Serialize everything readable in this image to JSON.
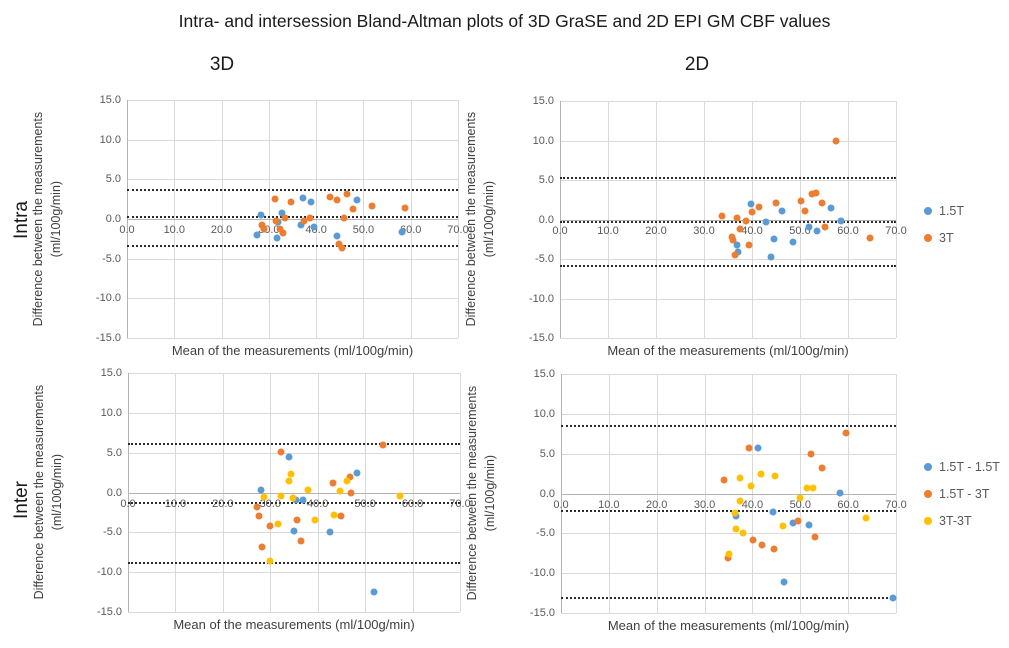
{
  "title": "Intra- and intersession Bland-Altman plots of 3D GraSE and 2D EPI GM CBF values",
  "column_headers": [
    "3D",
    "2D"
  ],
  "row_headers": [
    "Intra",
    "Inter"
  ],
  "colors": {
    "series_blue": "#5B9BD5",
    "series_orange": "#ED7D31",
    "series_yellow": "#FFC000",
    "gridline": "#D9D9D9",
    "axis_text": "#595959",
    "ref_line": "#2B2B2B"
  },
  "chart_data": [
    {
      "id": "intra-3d",
      "type": "scatter",
      "row": "Intra",
      "col": "3D",
      "xlabel": "Mean of the measurements (ml/100g/min)",
      "ylabel": [
        "Difference between the measurements",
        "(ml/100g/min)"
      ],
      "xlim": [
        0,
        70
      ],
      "ylim": [
        -15,
        15
      ],
      "xticks": [
        0,
        10,
        20,
        30,
        40,
        50,
        60,
        70
      ],
      "yticks": [
        15,
        10,
        5,
        0,
        -5,
        -10,
        -15
      ],
      "grid": true,
      "ref_lines": {
        "upper_loa": 3.7,
        "mean": 0.2,
        "lower_loa": -3.4
      },
      "legend": null,
      "series": [
        {
          "name": "1.5T",
          "color": "#5B9BD5",
          "points": [
            [
              28.3,
              0.5
            ],
            [
              27.5,
              -2.0
            ],
            [
              32.7,
              0.7
            ],
            [
              32.0,
              -0.4
            ],
            [
              31.8,
              -2.4
            ],
            [
              37.3,
              2.6
            ],
            [
              38.9,
              2.1
            ],
            [
              36.9,
              -0.8
            ],
            [
              39.6,
              -1.0
            ],
            [
              44.4,
              -2.2
            ],
            [
              48.6,
              2.4
            ],
            [
              58.2,
              -1.7
            ]
          ]
        },
        {
          "name": "3T",
          "color": "#ED7D31",
          "points": [
            [
              31.2,
              2.5
            ],
            [
              34.6,
              2.1
            ],
            [
              28.5,
              -0.8
            ],
            [
              28.9,
              -1.3
            ],
            [
              31.5,
              -0.2
            ],
            [
              32.4,
              -1.3
            ],
            [
              33.0,
              -1.8
            ],
            [
              33.4,
              0.1
            ],
            [
              37.4,
              -0.2
            ],
            [
              38.6,
              0.1
            ],
            [
              43.0,
              2.8
            ],
            [
              44.5,
              2.4
            ],
            [
              45.9,
              0.1
            ],
            [
              46.6,
              3.1
            ],
            [
              47.7,
              1.3
            ],
            [
              51.8,
              1.6
            ],
            [
              58.8,
              1.4
            ],
            [
              44.9,
              -3.2
            ],
            [
              45.4,
              -3.6
            ]
          ]
        }
      ]
    },
    {
      "id": "intra-2d",
      "type": "scatter",
      "row": "Intra",
      "col": "2D",
      "xlabel": "Mean of the measurements (ml/100g/min)",
      "ylabel": [
        "Difference between the measurements",
        "(ml/100g/min)"
      ],
      "xlim": [
        0,
        70
      ],
      "ylim": [
        -15,
        15
      ],
      "xticks": [
        0,
        10,
        20,
        30,
        40,
        50,
        60,
        70
      ],
      "yticks": [
        15,
        10,
        5,
        0,
        -5,
        -10,
        -15
      ],
      "grid": true,
      "ref_lines": {
        "upper_loa": 5.3,
        "mean": -0.3,
        "lower_loa": -5.9
      },
      "legend": [
        "1.5T",
        "3T"
      ],
      "series": [
        {
          "name": "1.5T",
          "color": "#5B9BD5",
          "points": [
            [
              39.8,
              2.0
            ],
            [
              42.9,
              -0.3
            ],
            [
              36.8,
              -3.2
            ],
            [
              37.0,
              -4.1
            ],
            [
              44.6,
              -2.5
            ],
            [
              44.0,
              -4.8
            ],
            [
              46.3,
              1.1
            ],
            [
              48.6,
              -2.9
            ],
            [
              51.9,
              -0.9
            ],
            [
              53.5,
              -1.4
            ],
            [
              56.5,
              1.4
            ],
            [
              58.5,
              -0.2
            ]
          ]
        },
        {
          "name": "3T",
          "color": "#ED7D31",
          "points": [
            [
              33.8,
              0.4
            ],
            [
              36.8,
              0.2
            ],
            [
              38.8,
              -0.2
            ],
            [
              37.6,
              -1.2
            ],
            [
              35.8,
              -2.2
            ],
            [
              36.1,
              -2.6
            ],
            [
              36.5,
              -4.5
            ],
            [
              39.3,
              -3.2
            ],
            [
              40.0,
              0.9
            ],
            [
              41.5,
              1.6
            ],
            [
              45.1,
              2.1
            ],
            [
              50.2,
              2.3
            ],
            [
              51.0,
              1.1
            ],
            [
              52.4,
              3.2
            ],
            [
              53.3,
              3.3
            ],
            [
              54.5,
              2.1
            ],
            [
              55.2,
              -1.0
            ],
            [
              57.4,
              10.0
            ],
            [
              64.6,
              -2.4
            ]
          ]
        }
      ]
    },
    {
      "id": "inter-3d",
      "type": "scatter",
      "row": "Inter",
      "col": "3D",
      "xlabel": "Mean of the measurements (ml/100g/min)",
      "ylabel": [
        "Difference between the measurements",
        "(ml/100g/min)"
      ],
      "xlim": [
        0,
        70
      ],
      "ylim": [
        -15,
        15
      ],
      "xticks": [
        0,
        10,
        20,
        30,
        40,
        50,
        60,
        70
      ],
      "yticks": [
        15,
        10,
        5,
        0,
        -5,
        -10,
        -15
      ],
      "grid": true,
      "ref_lines": {
        "upper_loa": 6.1,
        "mean": -1.3,
        "lower_loa": -8.9
      },
      "legend": null,
      "series": [
        {
          "name": "1.5T - 1.5T",
          "color": "#5B9BD5",
          "points": [
            [
              28.0,
              0.3
            ],
            [
              34.0,
              4.4
            ],
            [
              35.4,
              -0.9
            ],
            [
              36.8,
              -0.9
            ],
            [
              34.9,
              -4.8
            ],
            [
              42.5,
              -5.0
            ],
            [
              48.3,
              2.5
            ],
            [
              51.9,
              -12.5
            ]
          ]
        },
        {
          "name": "1.5T - 3T",
          "color": "#ED7D31",
          "points": [
            [
              27.3,
              -1.8
            ],
            [
              27.6,
              -2.9
            ],
            [
              28.3,
              -6.9
            ],
            [
              29.9,
              -4.2
            ],
            [
              32.3,
              5.1
            ],
            [
              35.7,
              -3.5
            ],
            [
              36.4,
              -6.1
            ],
            [
              43.2,
              1.2
            ],
            [
              45.0,
              -2.9
            ],
            [
              46.8,
              2.0
            ],
            [
              47.0,
              0.0
            ],
            [
              53.7,
              6.0
            ]
          ]
        },
        {
          "name": "3T-3T",
          "color": "#FFC000",
          "points": [
            [
              28.6,
              -0.6
            ],
            [
              30.0,
              -8.6
            ],
            [
              31.6,
              -4.0
            ],
            [
              32.2,
              -0.4
            ],
            [
              34.3,
              2.3
            ],
            [
              34.0,
              1.4
            ],
            [
              34.7,
              -0.7
            ],
            [
              38.0,
              0.3
            ],
            [
              39.4,
              -3.5
            ],
            [
              43.4,
              -2.8
            ],
            [
              44.7,
              0.2
            ],
            [
              46.2,
              1.4
            ],
            [
              57.3,
              -0.5
            ]
          ]
        }
      ]
    },
    {
      "id": "inter-2d",
      "type": "scatter",
      "row": "Inter",
      "col": "2D",
      "xlabel": "Mean of the measurements (ml/100g/min)",
      "ylabel": [
        "Difference between the measurements",
        "(ml/100g/min)"
      ],
      "xlim": [
        0,
        70
      ],
      "ylim": [
        -15,
        15
      ],
      "xticks": [
        0,
        10,
        20,
        30,
        40,
        50,
        60,
        70
      ],
      "yticks": [
        15,
        10,
        5,
        0,
        -5,
        -10,
        -15
      ],
      "grid": true,
      "ref_lines": {
        "upper_loa": 8.5,
        "mean": -2.2,
        "lower_loa": -13.1
      },
      "legend": [
        "1.5T - 1.5T",
        "1.5T - 3T",
        "3T-3T"
      ],
      "series": [
        {
          "name": "1.5T - 1.5T",
          "color": "#5B9BD5",
          "points": [
            [
              41.2,
              5.7
            ],
            [
              36.5,
              -2.8
            ],
            [
              44.4,
              -2.3
            ],
            [
              48.4,
              -3.7
            ],
            [
              51.9,
              -4.0
            ],
            [
              58.2,
              0.1
            ],
            [
              46.7,
              -11.1
            ],
            [
              69.4,
              -13.1
            ]
          ]
        },
        {
          "name": "1.5T - 3T",
          "color": "#ED7D31",
          "points": [
            [
              34.1,
              1.7
            ],
            [
              34.8,
              -8.1
            ],
            [
              39.3,
              5.7
            ],
            [
              40.1,
              -5.8
            ],
            [
              42.1,
              -6.5
            ],
            [
              44.6,
              -7.0
            ],
            [
              49.6,
              -3.4
            ],
            [
              52.2,
              4.9
            ],
            [
              53.1,
              -5.4
            ],
            [
              54.6,
              3.2
            ],
            [
              59.5,
              7.6
            ]
          ]
        },
        {
          "name": "3T-3T",
          "color": "#FFC000",
          "points": [
            [
              35.2,
              -7.6
            ],
            [
              36.4,
              -2.4
            ],
            [
              36.6,
              -4.4
            ],
            [
              37.4,
              1.9
            ],
            [
              37.4,
              -0.9
            ],
            [
              38.1,
              -5.0
            ],
            [
              39.7,
              0.9
            ],
            [
              41.8,
              2.4
            ],
            [
              44.7,
              2.2
            ],
            [
              46.4,
              -4.1
            ],
            [
              49.9,
              -0.6
            ],
            [
              51.3,
              0.7
            ],
            [
              52.6,
              0.7
            ],
            [
              63.7,
              -3.1
            ]
          ]
        }
      ]
    }
  ]
}
